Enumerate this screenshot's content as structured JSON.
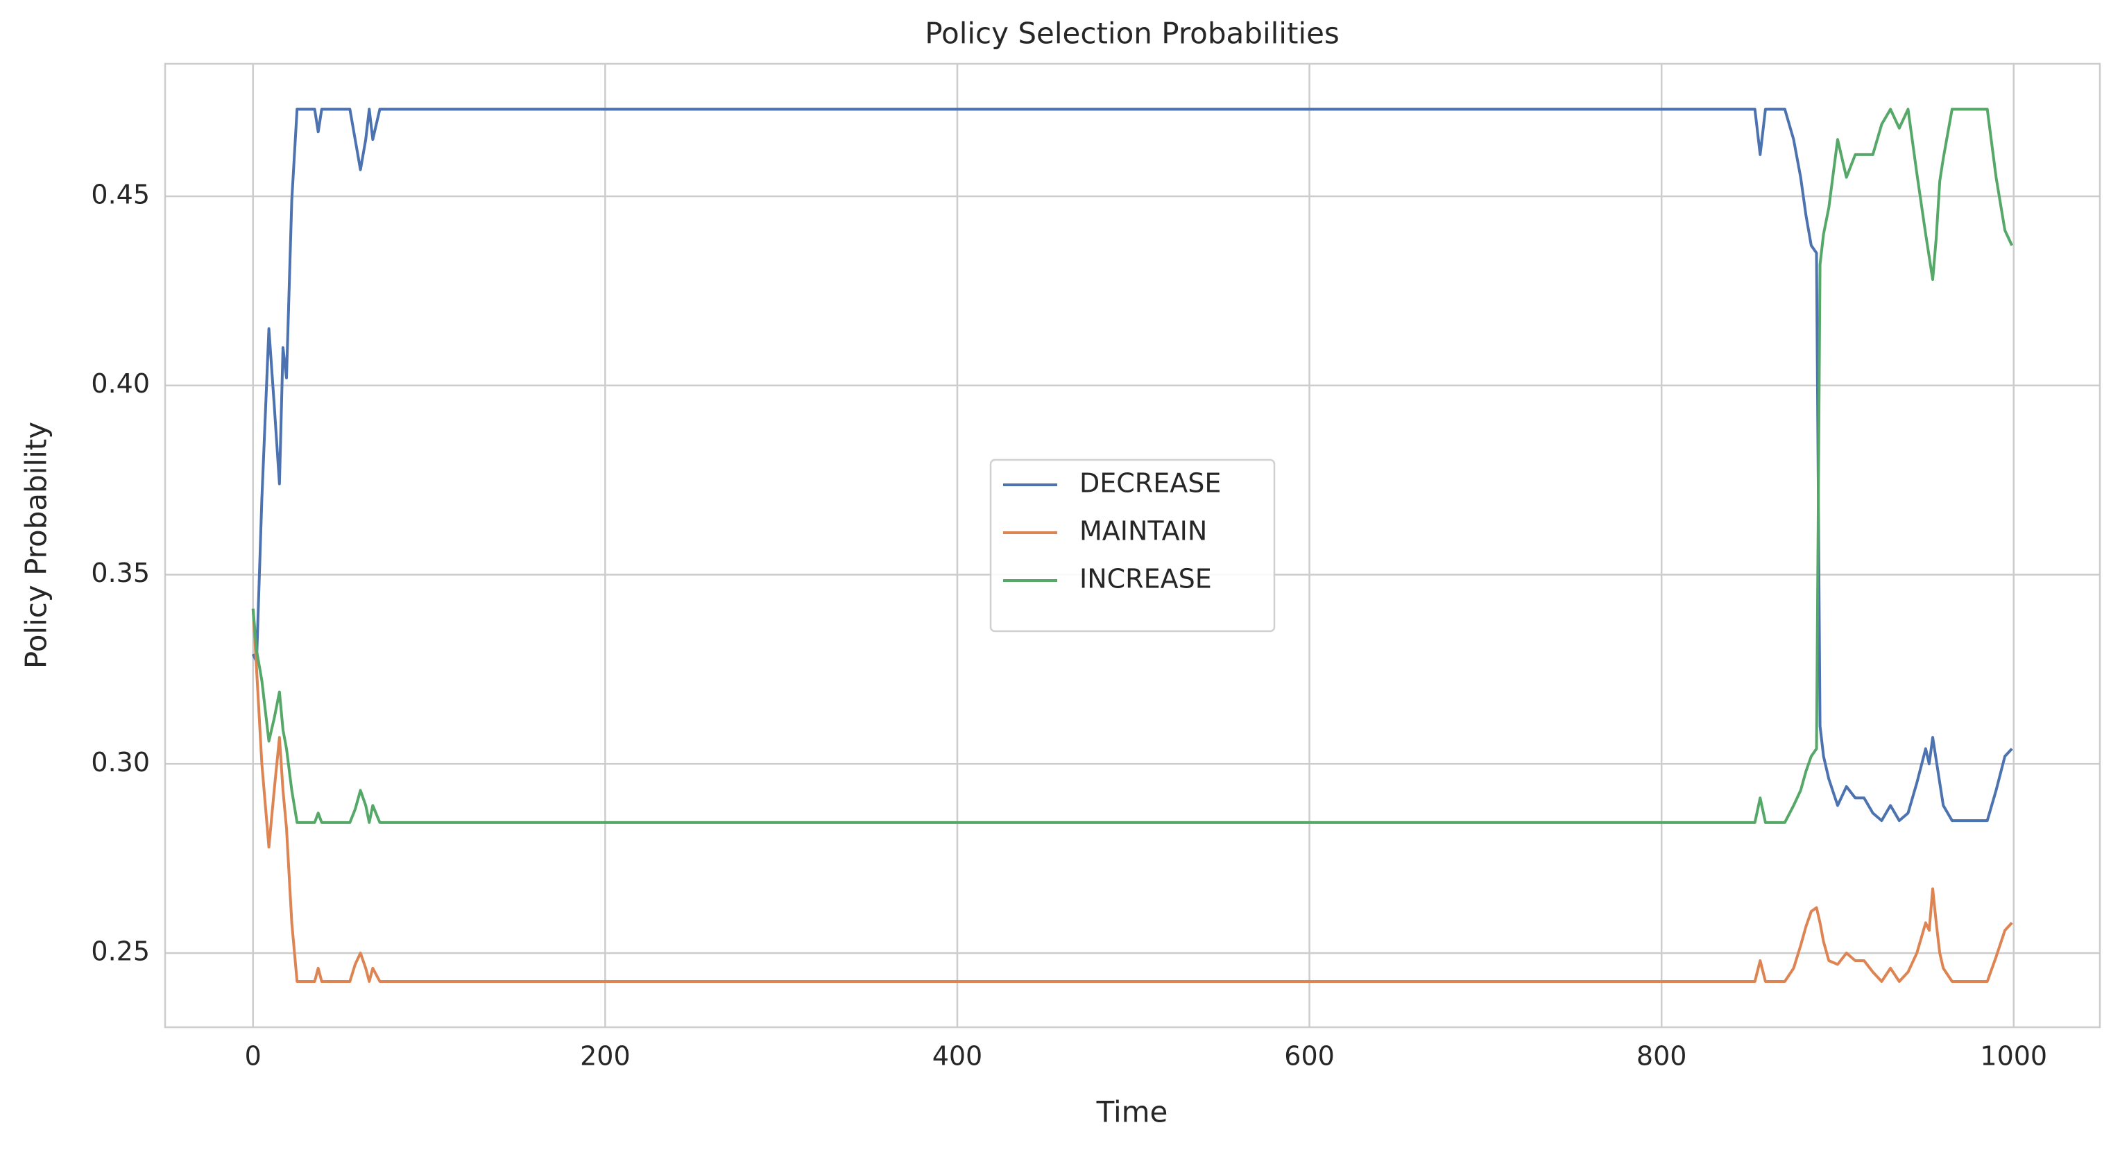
{
  "chart_data": {
    "type": "line",
    "title": "Policy Selection Probabilities",
    "x_label": "Time",
    "y_label": "Policy Probability",
    "x": [
      0,
      2,
      5,
      9,
      12,
      15,
      17,
      19,
      22,
      25,
      28,
      35,
      37,
      39,
      55,
      58,
      61,
      64,
      66,
      68,
      72,
      75,
      850,
      853,
      856,
      859,
      870,
      875,
      879,
      882,
      885,
      888,
      890,
      892,
      895,
      900,
      905,
      910,
      915,
      920,
      925,
      930,
      935,
      940,
      945,
      950,
      952,
      954,
      956,
      958,
      960,
      965,
      985,
      990,
      995,
      999
    ],
    "series": [
      {
        "name": "DECREASE",
        "color": "#4c72b0",
        "values": [
          0.329,
          0.327,
          0.37,
          0.415,
          0.395,
          0.374,
          0.41,
          0.402,
          0.449,
          0.473,
          0.473,
          0.473,
          0.467,
          0.473,
          0.473,
          0.465,
          0.457,
          0.465,
          0.473,
          0.465,
          0.473,
          0.473,
          0.473,
          0.473,
          0.461,
          0.473,
          0.473,
          0.465,
          0.455,
          0.445,
          0.437,
          0.435,
          0.31,
          0.302,
          0.296,
          0.289,
          0.294,
          0.291,
          0.291,
          0.287,
          0.285,
          0.289,
          0.285,
          0.287,
          0.295,
          0.304,
          0.3,
          0.307,
          0.301,
          0.295,
          0.289,
          0.285,
          0.285,
          0.293,
          0.302,
          0.304
        ]
      },
      {
        "name": "MAINTAIN",
        "color": "#dd8452",
        "values": [
          0.341,
          0.325,
          0.3,
          0.278,
          0.293,
          0.307,
          0.293,
          0.283,
          0.258,
          0.2425,
          0.2425,
          0.2425,
          0.246,
          0.2425,
          0.2425,
          0.247,
          0.25,
          0.246,
          0.2425,
          0.246,
          0.2425,
          0.2425,
          0.2425,
          0.2425,
          0.248,
          0.2425,
          0.2425,
          0.246,
          0.252,
          0.257,
          0.261,
          0.262,
          0.258,
          0.253,
          0.248,
          0.247,
          0.25,
          0.248,
          0.248,
          0.245,
          0.2425,
          0.246,
          0.2425,
          0.245,
          0.25,
          0.258,
          0.256,
          0.267,
          0.258,
          0.25,
          0.246,
          0.2425,
          0.2425,
          0.249,
          0.256,
          0.258
        ]
      },
      {
        "name": "INCREASE",
        "color": "#55a868",
        "values": [
          0.341,
          0.33,
          0.322,
          0.306,
          0.312,
          0.319,
          0.309,
          0.304,
          0.293,
          0.2845,
          0.2845,
          0.2845,
          0.287,
          0.2845,
          0.2845,
          0.288,
          0.293,
          0.289,
          0.2845,
          0.289,
          0.2845,
          0.2845,
          0.2845,
          0.2845,
          0.291,
          0.2845,
          0.2845,
          0.289,
          0.293,
          0.298,
          0.302,
          0.304,
          0.432,
          0.44,
          0.447,
          0.465,
          0.455,
          0.461,
          0.461,
          0.461,
          0.469,
          0.473,
          0.468,
          0.473,
          0.456,
          0.44,
          0.434,
          0.428,
          0.439,
          0.454,
          0.46,
          0.473,
          0.473,
          0.455,
          0.441,
          0.437
        ]
      }
    ],
    "xlim": [
      -49.95,
      1048.95
    ],
    "xticks": [
      0,
      200,
      400,
      600,
      800,
      1000
    ],
    "ylim": [
      0.2304,
      0.485
    ],
    "yticks": [
      0.25,
      {
        "value": 0.3,
        "label": "0.30"
      },
      0.35,
      {
        "value": 0.4,
        "label": "0.40"
      },
      0.45
    ],
    "grid": true,
    "legend": "center"
  }
}
